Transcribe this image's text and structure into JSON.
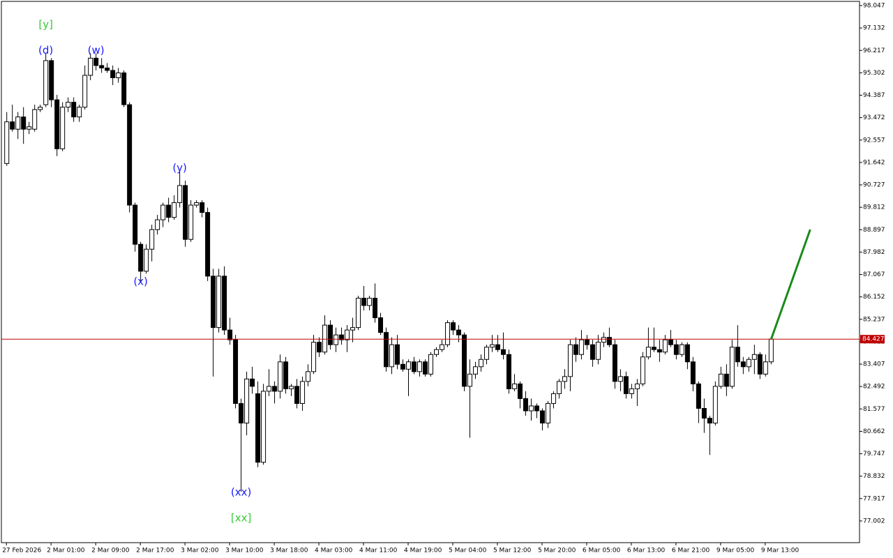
{
  "chart_data": {
    "type": "candlestick",
    "ylim": [
      76.117,
      98.218
    ],
    "yticks": [
      98.047,
      97.132,
      96.217,
      95.302,
      94.387,
      93.472,
      92.557,
      91.642,
      90.727,
      89.812,
      88.897,
      87.982,
      87.067,
      86.152,
      85.237,
      84.322,
      83.407,
      82.492,
      81.577,
      80.662,
      79.747,
      78.832,
      77.917,
      77.002
    ],
    "xlim": [
      -0.9,
      152.9
    ],
    "xticks": [
      {
        "value": 0,
        "label": "27 Feb 2026"
      },
      {
        "value": 8,
        "label": "2 Mar 01:00"
      },
      {
        "value": 16,
        "label": "2 Mar 09:00"
      },
      {
        "value": 24,
        "label": "2 Mar 17:00"
      },
      {
        "value": 32,
        "label": "3 Mar 02:00"
      },
      {
        "value": 40,
        "label": "3 Mar 10:00"
      },
      {
        "value": 48,
        "label": "3 Mar 18:00"
      },
      {
        "value": 56,
        "label": "4 Mar 03:00"
      },
      {
        "value": 64,
        "label": "4 Mar 11:00"
      },
      {
        "value": 72,
        "label": "4 Mar 19:00"
      },
      {
        "value": 80,
        "label": "5 Mar 04:00"
      },
      {
        "value": 88,
        "label": "5 Mar 12:00"
      },
      {
        "value": 96,
        "label": "5 Mar 20:00"
      },
      {
        "value": 104,
        "label": "6 Mar 05:00"
      },
      {
        "value": 112,
        "label": "6 Mar 13:00"
      },
      {
        "value": 120,
        "label": "6 Mar 21:00"
      },
      {
        "value": 128,
        "label": "9 Mar 05:00"
      },
      {
        "value": 136,
        "label": "9 Mar 13:00"
      }
    ],
    "up_color": "#ffffff",
    "down_color": "#000000",
    "candles": [
      [
        91.6,
        93.7,
        91.5,
        93.3
      ],
      [
        93.3,
        94.0,
        92.9,
        93.0
      ],
      [
        93.0,
        93.7,
        92.6,
        93.5
      ],
      [
        93.5,
        93.9,
        92.4,
        93.0
      ],
      [
        93.0,
        93.3,
        92.8,
        93.1
      ],
      [
        93.0,
        94.0,
        92.9,
        93.8
      ],
      [
        93.8,
        94.0,
        93.7,
        93.9
      ],
      [
        94.0,
        96.1,
        93.9,
        95.8
      ],
      [
        95.8,
        95.9,
        93.9,
        94.2
      ],
      [
        94.2,
        94.4,
        91.9,
        92.2
      ],
      [
        92.2,
        94.1,
        92.1,
        93.9
      ],
      [
        93.9,
        94.3,
        93.7,
        94.1
      ],
      [
        94.1,
        94.3,
        93.3,
        93.5
      ],
      [
        93.5,
        94.0,
        93.3,
        93.9
      ],
      [
        93.9,
        95.6,
        93.8,
        95.2
      ],
      [
        95.2,
        96.1,
        95.0,
        95.9
      ],
      [
        95.9,
        96.1,
        95.4,
        95.6
      ],
      [
        95.6,
        95.9,
        95.3,
        95.5
      ],
      [
        95.5,
        95.7,
        95.3,
        95.4
      ],
      [
        95.4,
        95.6,
        94.8,
        95.1
      ],
      [
        95.1,
        95.5,
        94.9,
        95.3
      ],
      [
        95.3,
        95.4,
        93.9,
        94.0
      ],
      [
        94.0,
        94.1,
        89.6,
        89.9
      ],
      [
        89.9,
        90.0,
        88.0,
        88.3
      ],
      [
        88.3,
        88.4,
        86.8,
        87.2
      ],
      [
        87.2,
        88.3,
        87.1,
        88.1
      ],
      [
        88.1,
        89.1,
        87.6,
        88.9
      ],
      [
        88.9,
        89.5,
        88.7,
        89.3
      ],
      [
        89.3,
        90.0,
        89.0,
        89.9
      ],
      [
        89.9,
        90.2,
        89.2,
        89.4
      ],
      [
        89.4,
        90.3,
        89.3,
        90.0
      ],
      [
        90.0,
        91.3,
        89.8,
        90.7
      ],
      [
        90.7,
        90.9,
        88.2,
        88.5
      ],
      [
        88.5,
        90.1,
        88.4,
        89.9
      ],
      [
        89.9,
        90.1,
        89.8,
        90.0
      ],
      [
        90.0,
        90.1,
        89.4,
        89.6
      ],
      [
        89.6,
        89.8,
        86.8,
        87.0
      ],
      [
        87.0,
        87.3,
        82.9,
        84.9
      ],
      [
        84.9,
        87.3,
        84.7,
        87.0
      ],
      [
        87.0,
        87.4,
        84.6,
        84.8
      ],
      [
        84.8,
        85.3,
        84.2,
        84.4
      ],
      [
        84.4,
        84.6,
        81.6,
        81.8
      ],
      [
        81.8,
        82.0,
        78.2,
        81.0
      ],
      [
        81.0,
        83.1,
        80.5,
        82.8
      ],
      [
        82.8,
        83.3,
        82.2,
        82.5
      ],
      [
        82.2,
        82.7,
        79.2,
        79.4
      ],
      [
        79.4,
        82.6,
        79.3,
        82.3
      ],
      [
        82.3,
        83.2,
        82.1,
        82.5
      ],
      [
        82.5,
        82.7,
        81.8,
        82.3
      ],
      [
        82.3,
        83.8,
        82.0,
        83.5
      ],
      [
        83.5,
        83.7,
        82.2,
        82.4
      ],
      [
        82.4,
        82.6,
        82.1,
        82.5
      ],
      [
        82.5,
        82.8,
        81.6,
        81.8
      ],
      [
        81.8,
        82.9,
        81.5,
        82.7
      ],
      [
        82.7,
        83.4,
        82.5,
        83.1
      ],
      [
        83.1,
        84.6,
        83.0,
        84.3
      ],
      [
        84.3,
        84.5,
        83.7,
        83.9
      ],
      [
        83.9,
        85.4,
        83.8,
        85.0
      ],
      [
        85.0,
        85.2,
        84.0,
        84.2
      ],
      [
        84.2,
        84.9,
        83.9,
        84.6
      ],
      [
        84.6,
        84.9,
        84.2,
        84.4
      ],
      [
        84.4,
        85.0,
        83.9,
        84.8
      ],
      [
        84.8,
        85.3,
        84.3,
        84.9
      ],
      [
        84.9,
        86.2,
        84.8,
        86.1
      ],
      [
        86.1,
        86.6,
        85.6,
        85.8
      ],
      [
        85.8,
        86.2,
        85.6,
        86.1
      ],
      [
        86.1,
        86.7,
        85.1,
        85.3
      ],
      [
        85.3,
        85.5,
        84.6,
        84.7
      ],
      [
        84.7,
        84.9,
        83.1,
        83.3
      ],
      [
        83.3,
        84.5,
        83.0,
        84.2
      ],
      [
        84.2,
        84.6,
        83.2,
        83.4
      ],
      [
        83.4,
        83.6,
        83.1,
        83.2
      ],
      [
        83.2,
        83.6,
        82.1,
        83.5
      ],
      [
        83.5,
        83.7,
        83.0,
        83.1
      ],
      [
        83.1,
        83.6,
        82.9,
        83.5
      ],
      [
        83.5,
        83.6,
        82.9,
        83.0
      ],
      [
        83.0,
        83.9,
        82.9,
        83.8
      ],
      [
        83.8,
        84.1,
        83.7,
        84.0
      ],
      [
        84.0,
        84.4,
        83.9,
        84.2
      ],
      [
        84.2,
        85.2,
        84.1,
        85.1
      ],
      [
        85.1,
        85.2,
        84.6,
        84.8
      ],
      [
        84.8,
        85.0,
        84.3,
        84.6
      ],
      [
        84.6,
        84.7,
        82.3,
        82.5
      ],
      [
        82.5,
        83.6,
        80.4,
        83.0
      ],
      [
        83.0,
        83.5,
        82.8,
        83.3
      ],
      [
        83.3,
        83.8,
        83.1,
        83.6
      ],
      [
        83.6,
        84.2,
        83.4,
        84.1
      ],
      [
        84.1,
        84.6,
        83.9,
        84.2
      ],
      [
        84.2,
        84.6,
        83.9,
        84.0
      ],
      [
        84.0,
        84.7,
        83.6,
        83.8
      ],
      [
        83.8,
        84.0,
        82.2,
        82.4
      ],
      [
        82.4,
        83.0,
        82.3,
        82.6
      ],
      [
        82.6,
        82.7,
        81.6,
        82.0
      ],
      [
        82.0,
        82.3,
        81.3,
        81.5
      ],
      [
        81.5,
        82.0,
        81.1,
        81.7
      ],
      [
        81.7,
        81.8,
        81.2,
        81.5
      ],
      [
        81.5,
        81.6,
        80.7,
        81.0
      ],
      [
        81.0,
        81.9,
        80.8,
        81.8
      ],
      [
        81.8,
        82.3,
        81.6,
        82.2
      ],
      [
        82.2,
        82.8,
        82.0,
        82.7
      ],
      [
        82.7,
        83.2,
        82.4,
        82.9
      ],
      [
        82.9,
        84.4,
        82.3,
        84.2
      ],
      [
        84.2,
        84.5,
        83.5,
        83.8
      ],
      [
        83.8,
        84.8,
        83.6,
        84.4
      ],
      [
        84.4,
        84.6,
        84.0,
        84.2
      ],
      [
        84.2,
        84.4,
        83.3,
        83.6
      ],
      [
        83.6,
        84.6,
        83.4,
        84.3
      ],
      [
        84.3,
        84.7,
        84.1,
        84.5
      ],
      [
        84.5,
        84.9,
        84.1,
        84.2
      ],
      [
        84.2,
        84.4,
        82.4,
        82.7
      ],
      [
        82.7,
        83.2,
        82.3,
        82.9
      ],
      [
        82.9,
        83.1,
        82.0,
        82.2
      ],
      [
        82.2,
        82.6,
        82.0,
        82.4
      ],
      [
        82.4,
        82.8,
        81.7,
        82.6
      ],
      [
        82.6,
        83.9,
        82.5,
        83.7
      ],
      [
        83.7,
        84.9,
        83.6,
        84.1
      ],
      [
        84.1,
        84.9,
        83.9,
        84.0
      ],
      [
        84.0,
        84.4,
        83.5,
        83.9
      ],
      [
        83.9,
        84.6,
        83.8,
        84.4
      ],
      [
        84.4,
        84.8,
        84.1,
        84.2
      ],
      [
        84.2,
        84.4,
        83.6,
        83.8
      ],
      [
        83.8,
        84.3,
        83.7,
        84.2
      ],
      [
        84.2,
        84.3,
        83.2,
        83.5
      ],
      [
        83.5,
        83.7,
        82.3,
        82.6
      ],
      [
        82.6,
        82.7,
        81.0,
        81.6
      ],
      [
        81.6,
        82.0,
        80.6,
        81.2
      ],
      [
        81.2,
        81.3,
        79.7,
        81.0
      ],
      [
        81.0,
        82.7,
        80.9,
        82.5
      ],
      [
        82.5,
        83.3,
        82.4,
        83.0
      ],
      [
        83.0,
        83.4,
        82.1,
        82.5
      ],
      [
        82.5,
        84.4,
        82.4,
        84.1
      ],
      [
        84.1,
        85.0,
        83.3,
        83.5
      ],
      [
        83.5,
        83.7,
        83.0,
        83.3
      ],
      [
        83.3,
        83.7,
        83.1,
        83.6
      ],
      [
        83.6,
        84.2,
        83.0,
        83.8
      ],
      [
        83.8,
        83.9,
        82.8,
        83.0
      ],
      [
        83.0,
        83.8,
        82.9,
        83.5
      ],
      [
        83.5,
        84.5,
        83.4,
        84.427
      ]
    ],
    "current_price": {
      "value": 84.427,
      "label": "84.427",
      "color": "#c00000"
    },
    "forecast": {
      "x": [
        137,
        144
      ],
      "values": [
        84.427,
        88.9
      ],
      "color": "#1a8a1a"
    },
    "annotations": [
      {
        "text": "(d)",
        "candle": 7,
        "side": "above",
        "color": "#1a1aff"
      },
      {
        "text": "[y]",
        "candle": 7,
        "side": "above",
        "color": "#33cc33"
      },
      {
        "text": "(w)",
        "candle": 16,
        "side": "above",
        "color": "#1a1aff"
      },
      {
        "text": "(x)",
        "candle": 24,
        "side": "below",
        "color": "#1a1aff"
      },
      {
        "text": "(y)",
        "candle": 31,
        "side": "above",
        "color": "#1a1aff"
      },
      {
        "text": "(xx)",
        "candle": 42,
        "side": "below",
        "color": "#1a1aff"
      },
      {
        "text": "[xx]",
        "candle": 42,
        "side": "below",
        "color": "#33cc33"
      }
    ]
  }
}
